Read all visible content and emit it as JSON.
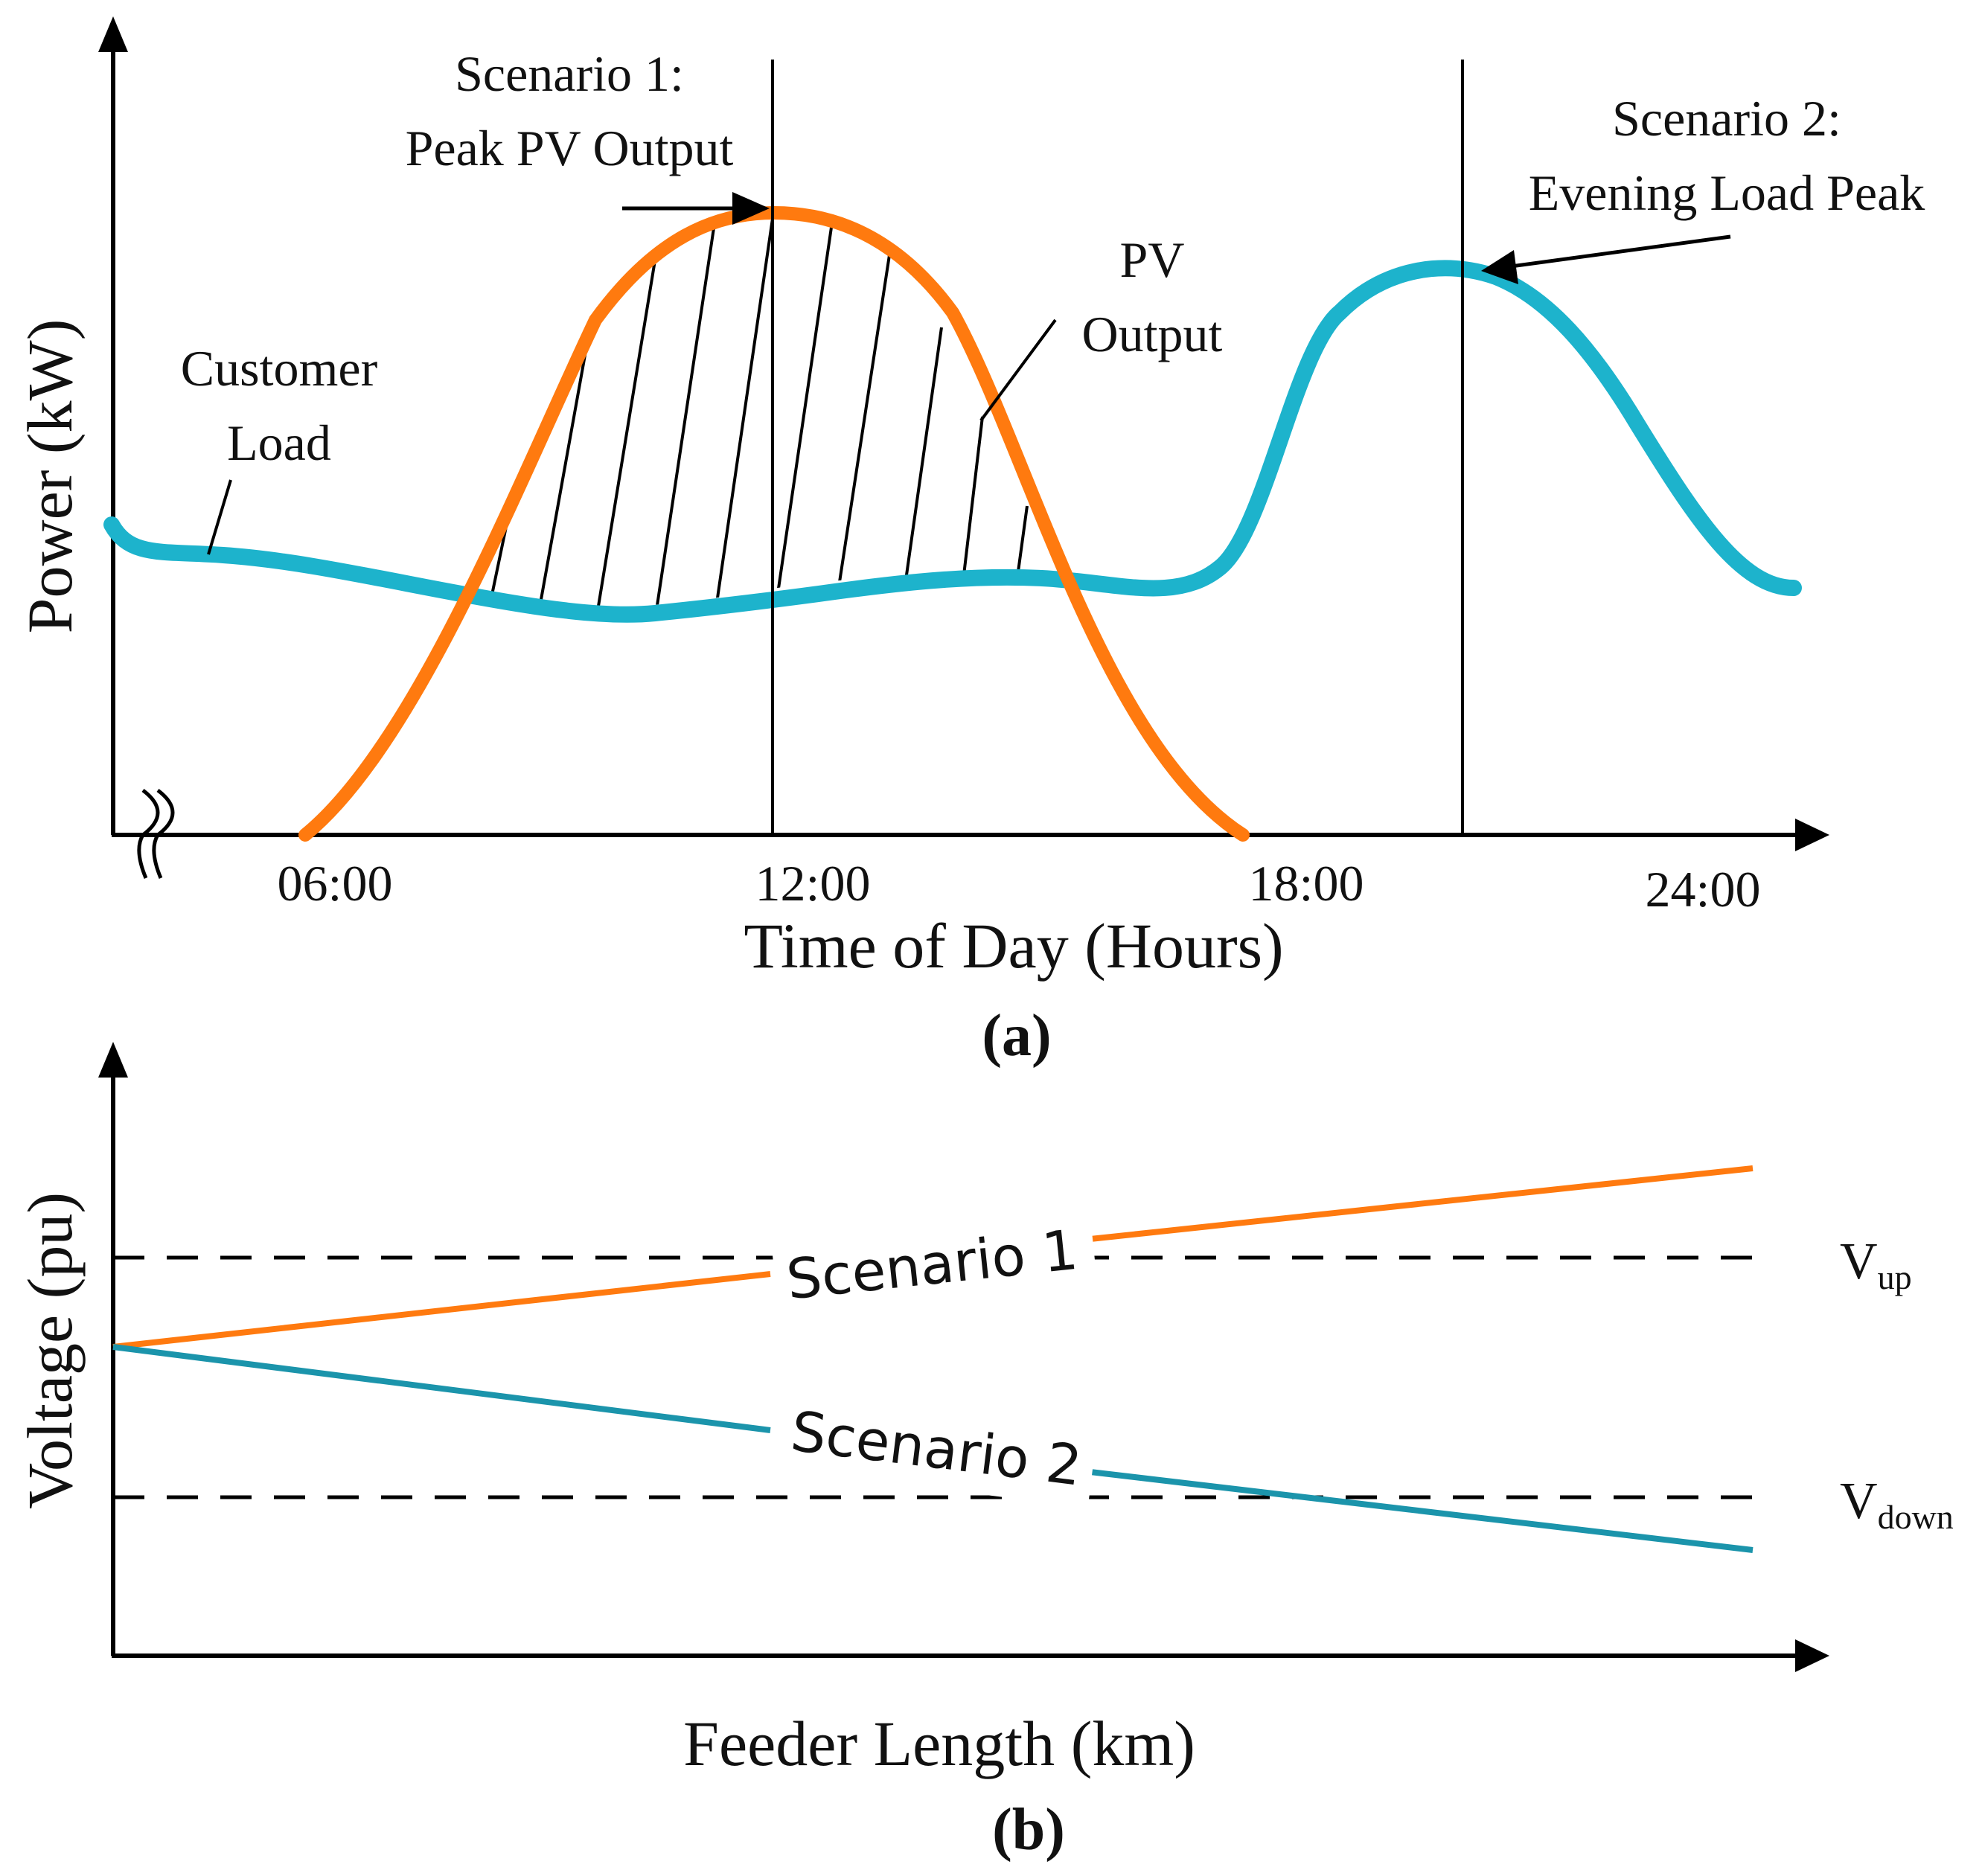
{
  "colors": {
    "pv": "#ff7a0f",
    "load": "#1db3cc",
    "scenario2_line": "#1b94ab",
    "ink": "#000000"
  },
  "panel_a": {
    "ylabel": "Power (kW)",
    "xlabel": "Time of Day (Hours)",
    "ticks": [
      "06:00",
      "12:00",
      "18:00",
      "24:00"
    ],
    "caption": "(a)",
    "annot_s1_line1": "Scenario 1:",
    "annot_s1_line2": "Peak PV Output",
    "annot_s2_line1": "Scenario 2:",
    "annot_s2_line2": "Evening Load Peak",
    "label_pv_line1": "PV",
    "label_pv_line2": "Output",
    "label_load_line1": "Customer",
    "label_load_line2": "Load"
  },
  "panel_b": {
    "ylabel": "Voltage (pu)",
    "xlabel": "Feeder Length (km)",
    "caption": "(b)",
    "label_s1": "Scenario 1",
    "label_s2": "Scenario 2",
    "v_up_main": "V",
    "v_up_sub": "up",
    "v_down_main": "V",
    "v_down_sub": "down"
  }
}
